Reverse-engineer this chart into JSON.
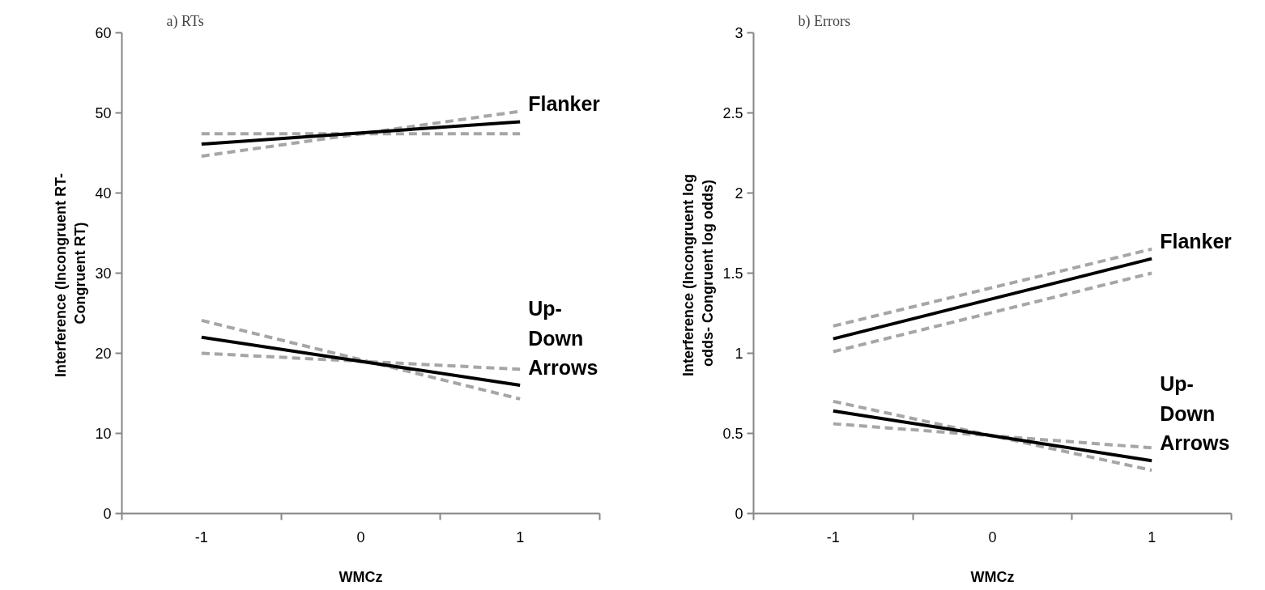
{
  "chart_data": [
    {
      "type": "line",
      "title": "a) RTs",
      "xlabel": "WMCz",
      "ylabel": "Interference  (Incongruent RT-\nCongruent RT)",
      "categories": [
        "-1",
        "0",
        "1"
      ],
      "ylim": [
        0,
        60
      ],
      "yticks": [
        0,
        10,
        20,
        30,
        40,
        50,
        60
      ],
      "series": [
        {
          "color": "#a6a6a6",
          "line_style": "dashed",
          "values": [
            47.4,
            47.4,
            47.4
          ]
        },
        {
          "color": "#a6a6a6",
          "line_style": "dashed",
          "values": [
            44.6,
            47.4,
            50.2
          ]
        },
        {
          "name": "Flanker",
          "color": "#000000",
          "line_style": "solid",
          "values": [
            46.1,
            47.5,
            48.9
          ]
        },
        {
          "color": "#a6a6a6",
          "line_style": "dashed",
          "values": [
            24.1,
            19.2,
            14.3
          ]
        },
        {
          "color": "#a6a6a6",
          "line_style": "dashed",
          "values": [
            20,
            19,
            18
          ]
        },
        {
          "name": "Up-Down Arrows",
          "color": "#000000",
          "line_style": "solid",
          "values": [
            22,
            19,
            16
          ]
        }
      ]
    },
    {
      "type": "line",
      "title": "b) Errors",
      "xlabel": "WMCz",
      "ylabel": "Interference  (Incongruent log\nodds- Congruent log odds)",
      "categories": [
        "-1",
        "0",
        "1"
      ],
      "ylim": [
        0,
        3
      ],
      "yticks": [
        0,
        0.5,
        1,
        1.5,
        2,
        2.5,
        3
      ],
      "series": [
        {
          "color": "#a6a6a6",
          "line_style": "dashed",
          "values": [
            1.17,
            1.41,
            1.65
          ]
        },
        {
          "color": "#a6a6a6",
          "line_style": "dashed",
          "values": [
            1.01,
            1.255,
            1.5
          ]
        },
        {
          "name": "Flanker",
          "color": "#000000",
          "line_style": "solid",
          "values": [
            1.09,
            1.34,
            1.59
          ]
        },
        {
          "color": "#a6a6a6",
          "line_style": "dashed",
          "values": [
            0.7,
            0.485,
            0.27
          ]
        },
        {
          "color": "#a6a6a6",
          "line_style": "dashed",
          "values": [
            0.56,
            0.485,
            0.41
          ]
        },
        {
          "name": "Up-Down Arrows",
          "color": "#000000",
          "line_style": "solid",
          "values": [
            0.64,
            0.485,
            0.33
          ]
        }
      ]
    }
  ]
}
